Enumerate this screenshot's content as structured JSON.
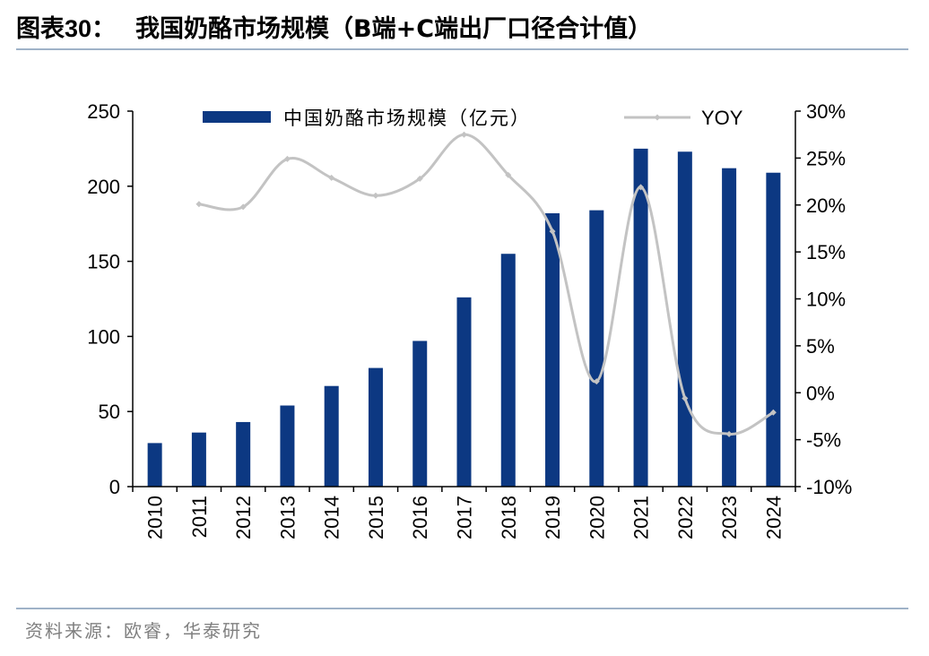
{
  "header": {
    "figure_number": "图表30：",
    "title": "我国奶酪市场规模（B端+C端出厂口径合计值）"
  },
  "footer": {
    "source": "资料来源：欧睿，华泰研究"
  },
  "colors": {
    "bar": "#0c3882",
    "line": "#c3c3c3",
    "rule": "#9fb2c8",
    "axis": "#000000",
    "source_text": "#808080"
  },
  "chart_data": {
    "type": "bar",
    "categories": [
      "2010",
      "2011",
      "2012",
      "2013",
      "2014",
      "2015",
      "2016",
      "2017",
      "2018",
      "2019",
      "2020",
      "2021",
      "2022",
      "2023",
      "2024"
    ],
    "series": [
      {
        "name": "中国奶酪市场规模（亿元）",
        "type": "bar",
        "axis": "left",
        "values": [
          29,
          36,
          43,
          54,
          67,
          79,
          97,
          126,
          155,
          182,
          184,
          225,
          223,
          212,
          209
        ]
      },
      {
        "name": "YOY",
        "type": "line",
        "axis": "right",
        "unit": "%",
        "values": [
          null,
          20.1,
          19.8,
          24.9,
          22.9,
          21.0,
          22.8,
          27.5,
          23.2,
          17.2,
          1.2,
          21.9,
          -0.6,
          -4.4,
          -2.1
        ]
      }
    ],
    "y_left": {
      "ylim": [
        0,
        250
      ],
      "ticks": [
        "0",
        "50",
        "100",
        "150",
        "200",
        "250"
      ],
      "tick_values": [
        0,
        50,
        100,
        150,
        200,
        250
      ]
    },
    "y_right": {
      "ylim": [
        -10,
        30
      ],
      "ticks": [
        "-10%",
        "-5%",
        "0%",
        "5%",
        "10%",
        "15%",
        "20%",
        "25%",
        "30%"
      ],
      "tick_values": [
        -10,
        -5,
        0,
        5,
        10,
        15,
        20,
        25,
        30
      ]
    },
    "legend_position": "top",
    "grid": false
  }
}
